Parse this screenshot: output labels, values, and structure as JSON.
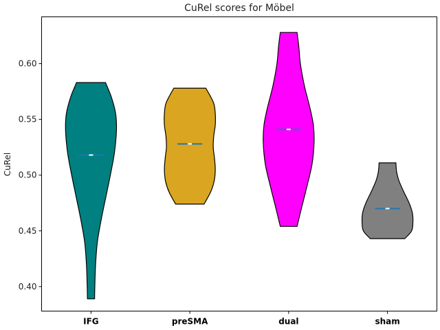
{
  "chart_data": {
    "type": "violin",
    "title": "CuRel scores for Möbel",
    "xlabel": "",
    "ylabel": "CuRel",
    "categories": [
      "IFG",
      "preSMA",
      "dual",
      "sham"
    ],
    "ylim": [
      0.378,
      0.642
    ],
    "yticks": [
      0.4,
      0.45,
      0.5,
      0.55,
      0.6
    ],
    "ytick_labels": [
      "0.40",
      "0.45",
      "0.50",
      "0.55",
      "0.60"
    ],
    "grid": false,
    "series": [
      {
        "category": "IFG",
        "color": "#008080",
        "min": 0.389,
        "max": 0.583,
        "median": 0.518,
        "profile": [
          [
            0.389,
            0.14
          ],
          [
            0.4,
            0.15
          ],
          [
            0.42,
            0.18
          ],
          [
            0.44,
            0.25
          ],
          [
            0.46,
            0.4
          ],
          [
            0.48,
            0.58
          ],
          [
            0.5,
            0.76
          ],
          [
            0.52,
            0.92
          ],
          [
            0.54,
            1.0
          ],
          [
            0.555,
            0.97
          ],
          [
            0.57,
            0.8
          ],
          [
            0.583,
            0.57
          ]
        ]
      },
      {
        "category": "preSMA",
        "color": "#DAA520",
        "min": 0.474,
        "max": 0.578,
        "median": 0.528,
        "profile": [
          [
            0.474,
            0.56
          ],
          [
            0.485,
            0.82
          ],
          [
            0.495,
            0.96
          ],
          [
            0.505,
            1.0
          ],
          [
            0.515,
            0.97
          ],
          [
            0.525,
            0.92
          ],
          [
            0.535,
            0.94
          ],
          [
            0.545,
            1.0
          ],
          [
            0.555,
            1.0
          ],
          [
            0.565,
            0.93
          ],
          [
            0.578,
            0.63
          ]
        ]
      },
      {
        "category": "dual",
        "color": "#FF00FF",
        "min": 0.454,
        "max": 0.628,
        "median": 0.541,
        "profile": [
          [
            0.454,
            0.33
          ],
          [
            0.47,
            0.5
          ],
          [
            0.49,
            0.72
          ],
          [
            0.51,
            0.92
          ],
          [
            0.53,
            1.0
          ],
          [
            0.545,
            0.97
          ],
          [
            0.56,
            0.84
          ],
          [
            0.58,
            0.62
          ],
          [
            0.6,
            0.46
          ],
          [
            0.615,
            0.4
          ],
          [
            0.628,
            0.33
          ]
        ]
      },
      {
        "category": "sham",
        "color": "#808080",
        "min": 0.443,
        "max": 0.511,
        "median": 0.47,
        "profile": [
          [
            0.443,
            0.68
          ],
          [
            0.45,
            0.95
          ],
          [
            0.458,
            1.0
          ],
          [
            0.466,
            0.98
          ],
          [
            0.475,
            0.85
          ],
          [
            0.485,
            0.64
          ],
          [
            0.495,
            0.45
          ],
          [
            0.503,
            0.36
          ],
          [
            0.511,
            0.33
          ]
        ]
      }
    ]
  }
}
